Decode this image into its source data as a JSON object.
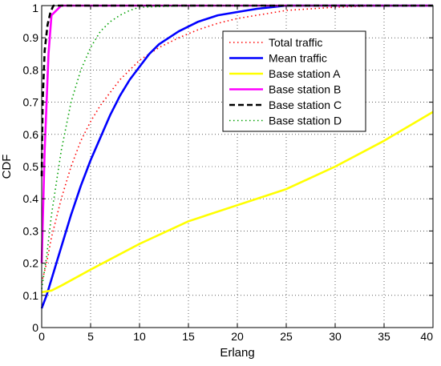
{
  "chart_data": {
    "type": "line",
    "title": "",
    "xlabel": "Erlang",
    "ylabel": "CDF",
    "xlim": [
      0,
      40
    ],
    "ylim": [
      0,
      1
    ],
    "xticks": [
      0,
      5,
      10,
      15,
      20,
      25,
      30,
      35,
      40
    ],
    "yticks": [
      0,
      0.1,
      0.2,
      0.3,
      0.4,
      0.5,
      0.6,
      0.7,
      0.8,
      0.9,
      1
    ],
    "xtick_labels": [
      "0",
      "5",
      "10",
      "15",
      "20",
      "25",
      "30",
      "35",
      "40"
    ],
    "ytick_labels": [
      "0",
      "0.1",
      "0.2",
      "0.3",
      "0.4",
      "0.5",
      "0.6",
      "0.7",
      "0.8",
      "0.9",
      "1"
    ],
    "grid": true,
    "grid_style": "dotted",
    "legend_position": "upper-right",
    "series": [
      {
        "name": "Total traffic",
        "color": "#ff0000",
        "style": "dotted",
        "x": [
          0,
          0.5,
          1,
          2,
          3,
          4,
          5,
          6,
          7,
          8,
          9,
          10,
          11,
          12,
          14,
          16,
          18,
          20,
          25,
          30,
          35,
          40
        ],
        "y": [
          0.14,
          0.2,
          0.28,
          0.4,
          0.5,
          0.58,
          0.64,
          0.69,
          0.73,
          0.77,
          0.8,
          0.83,
          0.85,
          0.87,
          0.9,
          0.925,
          0.945,
          0.96,
          0.985,
          0.995,
          1,
          1
        ]
      },
      {
        "name": "Mean traffic",
        "color": "#0000ff",
        "style": "solid",
        "x": [
          0,
          0.5,
          1,
          2,
          3,
          4,
          5,
          6,
          7,
          8,
          9,
          10,
          11,
          12,
          14,
          16,
          18,
          20,
          22,
          25,
          30,
          35,
          40
        ],
        "y": [
          0.06,
          0.1,
          0.15,
          0.25,
          0.35,
          0.44,
          0.52,
          0.59,
          0.66,
          0.72,
          0.77,
          0.81,
          0.85,
          0.88,
          0.92,
          0.95,
          0.97,
          0.98,
          0.99,
          1,
          1,
          1,
          1
        ]
      },
      {
        "name": "Base station A",
        "color": "#ffff00",
        "style": "solid",
        "x": [
          0,
          1,
          2,
          5,
          10,
          15,
          20,
          25,
          30,
          35,
          40
        ],
        "y": [
          0.11,
          0.115,
          0.13,
          0.18,
          0.26,
          0.33,
          0.38,
          0.43,
          0.5,
          0.58,
          0.67
        ]
      },
      {
        "name": "Base station B",
        "color": "#ff00ff",
        "style": "solid",
        "x": [
          0,
          0.3,
          0.7,
          1,
          2,
          3,
          5,
          10,
          20,
          30,
          40
        ],
        "y": [
          0.2,
          0.55,
          0.85,
          0.97,
          1,
          1,
          1,
          1,
          1,
          1,
          1
        ]
      },
      {
        "name": "Base station C",
        "color": "#000000",
        "style": "dashed",
        "x": [
          0,
          0.1,
          0.3,
          0.6,
          0.9,
          1.2,
          2,
          5,
          10,
          20,
          30,
          40
        ],
        "y": [
          0.47,
          0.7,
          0.86,
          0.94,
          0.98,
          1,
          1,
          1,
          1,
          1,
          1,
          1
        ]
      },
      {
        "name": "Base station D",
        "color": "#00a000",
        "style": "dotted",
        "x": [
          0,
          0.5,
          1,
          2,
          3,
          4,
          5,
          6,
          7,
          8,
          9,
          10,
          15,
          20,
          30,
          40
        ],
        "y": [
          0.12,
          0.22,
          0.35,
          0.55,
          0.7,
          0.8,
          0.87,
          0.92,
          0.95,
          0.97,
          0.985,
          0.995,
          1,
          1,
          1,
          1
        ]
      }
    ]
  }
}
